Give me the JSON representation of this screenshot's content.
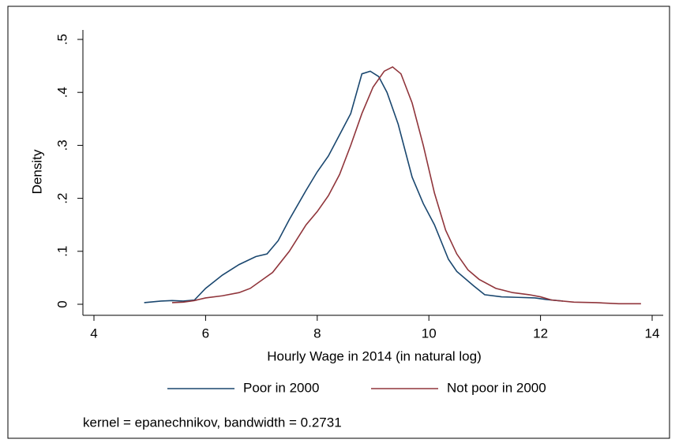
{
  "chart_data": {
    "type": "line",
    "xlabel": "Hourly Wage in 2014 (in natural log)",
    "ylabel": "Density",
    "note": "kernel = epanechnikov, bandwidth = 0.2731",
    "xlim": [
      4,
      14
    ],
    "xticks": [
      4,
      6,
      8,
      10,
      12,
      14
    ],
    "ylim": [
      0,
      0.5
    ],
    "yticks": [
      0,
      {
        "value": 0.1,
        "label": ".1"
      },
      {
        "value": 0.2,
        "label": ".2"
      },
      {
        "value": 0.3,
        "label": ".3"
      },
      {
        "value": 0.4,
        "label": ".4"
      },
      {
        "value": 0.5,
        "label": ".5"
      }
    ],
    "grid": false,
    "series": [
      {
        "name": "Poor in 2000",
        "color": "#1a476f",
        "x": [
          4.9,
          5.2,
          5.4,
          5.6,
          5.8,
          6.0,
          6.3,
          6.6,
          6.9,
          7.1,
          7.3,
          7.5,
          7.8,
          8.0,
          8.2,
          8.4,
          8.6,
          8.8,
          8.95,
          9.1,
          9.25,
          9.45,
          9.7,
          9.9,
          10.1,
          10.35,
          10.5,
          10.8,
          11.0,
          11.3,
          11.6,
          11.9,
          12.1,
          12.4
        ],
        "values": [
          0.003,
          0.006,
          0.007,
          0.006,
          0.008,
          0.03,
          0.055,
          0.075,
          0.09,
          0.095,
          0.12,
          0.16,
          0.215,
          0.25,
          0.28,
          0.32,
          0.36,
          0.435,
          0.44,
          0.43,
          0.4,
          0.34,
          0.24,
          0.19,
          0.15,
          0.085,
          0.062,
          0.035,
          0.018,
          0.014,
          0.013,
          0.012,
          0.009,
          0.006
        ]
      },
      {
        "name": "Not poor in 2000",
        "color": "#90353b",
        "x": [
          5.4,
          5.6,
          5.8,
          6.0,
          6.3,
          6.6,
          6.8,
          7.0,
          7.2,
          7.5,
          7.8,
          8.0,
          8.2,
          8.4,
          8.6,
          8.8,
          9.0,
          9.2,
          9.35,
          9.5,
          9.7,
          9.9,
          10.1,
          10.3,
          10.5,
          10.7,
          10.9,
          11.2,
          11.5,
          11.8,
          12.0,
          12.2,
          12.6,
          13.0,
          13.4,
          13.8
        ],
        "values": [
          0.003,
          0.004,
          0.007,
          0.012,
          0.016,
          0.022,
          0.03,
          0.045,
          0.06,
          0.1,
          0.15,
          0.175,
          0.205,
          0.245,
          0.3,
          0.36,
          0.41,
          0.44,
          0.448,
          0.435,
          0.38,
          0.3,
          0.21,
          0.14,
          0.095,
          0.065,
          0.047,
          0.03,
          0.022,
          0.018,
          0.014,
          0.008,
          0.004,
          0.003,
          0.001,
          0.001
        ]
      }
    ]
  }
}
